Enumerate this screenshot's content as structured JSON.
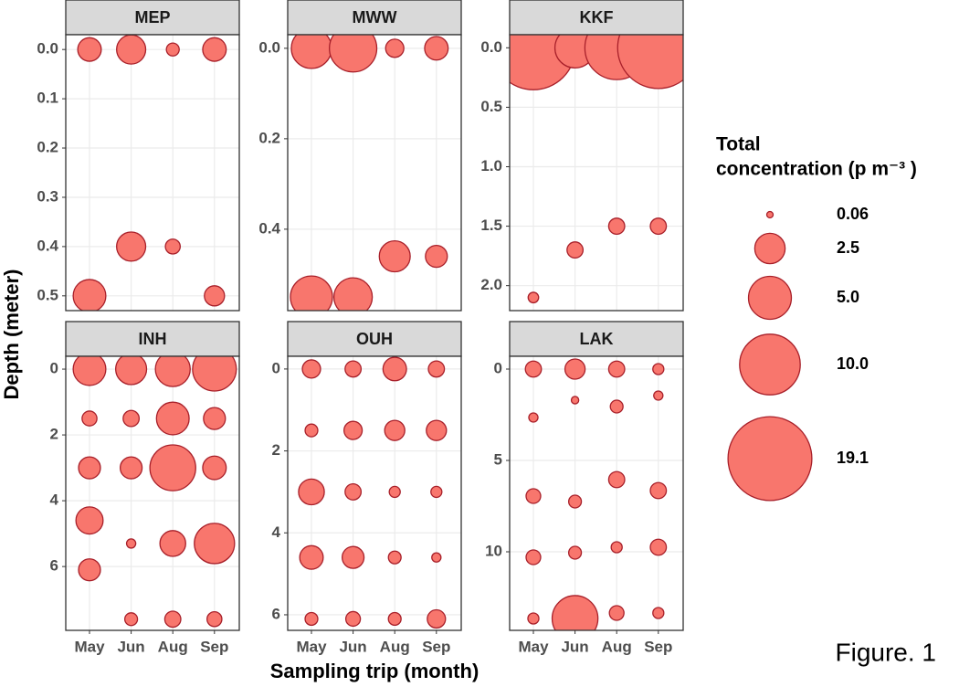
{
  "chart_data": {
    "type": "bubble",
    "x_label": "Sampling trip (month)",
    "y_label": "Depth (meter)",
    "legend_title": [
      "Total",
      "concentration (p m⁻³ )"
    ],
    "legend_sizes": [
      0.06,
      2.5,
      {
        "value": 5,
        "label": "5.0"
      },
      {
        "value": 10,
        "label": "10.0"
      },
      19.1
    ],
    "annotation": "Figure. 1",
    "color": "#F8766D",
    "edge_color": "#A8202A",
    "grid": true,
    "categories": [
      "May",
      "Jun",
      "Aug",
      "Sep"
    ],
    "panels": [
      {
        "title": "MEP",
        "ylim": [
          0.53,
          -0.03
        ],
        "yticks": [
          {
            "value": 0,
            "label": "0.0"
          },
          0.1,
          0.2,
          0.3,
          0.4,
          0.5
        ],
        "x": [
          "May",
          "Jun",
          "Aug",
          "Sep",
          "Jun",
          "Aug",
          "May",
          "Sep"
        ],
        "y": [
          0,
          0,
          0,
          0,
          0.4,
          0.4,
          0.5,
          0.5
        ],
        "size": [
          1.5,
          2.3,
          0.45,
          1.5,
          2.3,
          0.6,
          2.9,
          1.1
        ]
      },
      {
        "title": "MWW",
        "ylim": [
          0.58,
          -0.03
        ],
        "yticks": [
          {
            "value": 0,
            "label": "0.0"
          },
          0.2,
          0.4
        ],
        "x": [
          "May",
          "Jun",
          "Aug",
          "Sep",
          "Aug",
          "Sep",
          "May",
          "Jun"
        ],
        "y": [
          0,
          0,
          0,
          0,
          0.46,
          0.46,
          0.55,
          0.55
        ],
        "size": [
          4.4,
          6.1,
          0.9,
          1.5,
          2.6,
          1.3,
          4.8,
          4.0
        ]
      },
      {
        "title": "KKF",
        "ylim": [
          2.21,
          -0.11
        ],
        "yticks": [
          {
            "value": 0,
            "label": "0.0"
          },
          0.5,
          {
            "value": 1,
            "label": "1.0"
          },
          1.5,
          {
            "value": 2,
            "label": "2.0"
          }
        ],
        "x": [
          "May",
          "Jun",
          "Aug",
          "Sep",
          "Aug",
          "Sep",
          "Jun",
          "May"
        ],
        "y": [
          0,
          0,
          0,
          0,
          1.5,
          1.5,
          1.7,
          2.1
        ],
        "size": [
          19.1,
          4.4,
          11,
          18,
          0.7,
          0.7,
          0.7,
          0.3
        ]
      },
      {
        "title": "INH",
        "ylim": [
          7.94,
          -0.39
        ],
        "yticks": [
          0,
          2,
          4,
          6
        ],
        "x": [
          "May",
          "Jun",
          "Aug",
          "Sep",
          "May",
          "Jun",
          "Aug",
          "Sep",
          "May",
          "Jun",
          "Aug",
          "Sep",
          "May",
          "Jun",
          "Aug",
          "Sep",
          "May",
          "Jun",
          "Aug",
          "Sep"
        ],
        "y": [
          0,
          0,
          0,
          0,
          1.5,
          1.5,
          1.5,
          1.5,
          3,
          3,
          3,
          3,
          4.6,
          5.3,
          5.3,
          5.3,
          6.1,
          7.6,
          7.6,
          7.6
        ],
        "size": [
          2.9,
          2.6,
          3.3,
          5.2,
          0.6,
          0.7,
          2.9,
          1.3,
          1.3,
          1.3,
          5.7,
          1.5,
          2.0,
          0.23,
          1.8,
          4.4,
          1.3,
          0.44,
          0.7,
          0.6
        ]
      },
      {
        "title": "OUH",
        "ylim": [
          6.38,
          -0.31
        ],
        "yticks": [
          0,
          2,
          4,
          6
        ],
        "x": [
          "May",
          "Jun",
          "Aug",
          "Sep",
          "May",
          "Jun",
          "Aug",
          "Sep",
          "May",
          "Jun",
          "Aug",
          "Sep",
          "May",
          "Jun",
          "Aug",
          "Sep",
          "May",
          "Jun",
          "Aug",
          "Sep"
        ],
        "y": [
          0,
          0,
          0,
          0,
          1.5,
          1.5,
          1.5,
          1.5,
          3,
          3,
          3,
          3,
          4.6,
          4.6,
          4.6,
          4.6,
          6.1,
          6.1,
          6.1,
          6.1
        ],
        "size": [
          0.9,
          0.7,
          1.5,
          0.7,
          0.44,
          0.9,
          1.1,
          1.1,
          1.8,
          0.7,
          0.33,
          0.33,
          1.5,
          1.3,
          0.44,
          0.23,
          0.44,
          0.58,
          0.44,
          0.9
        ]
      },
      {
        "title": "LAK",
        "ylim": [
          14.3,
          -0.7
        ],
        "yticks": [
          0,
          5,
          10
        ],
        "x": [
          "May",
          "Jun",
          "Aug",
          "Sep",
          "Jun",
          "Sep",
          "Aug",
          "May",
          "Aug",
          "Sep",
          "May",
          "Jun",
          "Aug",
          "Sep",
          "Jun",
          "May",
          "May",
          "Jun",
          "Aug",
          "Sep"
        ],
        "y": [
          0,
          0,
          0,
          0,
          1.7,
          1.45,
          2.05,
          2.65,
          6.05,
          6.65,
          6.95,
          7.25,
          9.75,
          9.75,
          10.05,
          10.3,
          13.65,
          13.65,
          13.35,
          13.35
        ],
        "size": [
          0.7,
          1.1,
          0.7,
          0.33,
          0.15,
          0.23,
          0.44,
          0.23,
          0.7,
          0.7,
          0.58,
          0.44,
          0.33,
          0.7,
          0.44,
          0.58,
          0.33,
          5.7,
          0.58,
          0.33
        ]
      }
    ]
  }
}
